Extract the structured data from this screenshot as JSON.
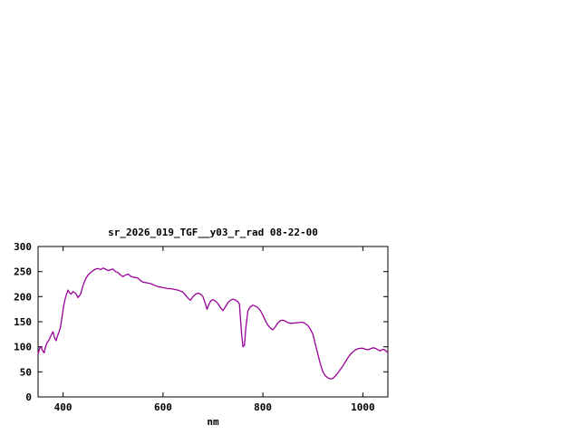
{
  "window": {
    "background": "#ffffff",
    "text_color": "#000000"
  },
  "chart_data": {
    "type": "line",
    "title": "sr_2026_019_TGF__y03_r_rad 08-22-00",
    "xlabel": "nm",
    "ylabel": "",
    "xlim": [
      350,
      1050
    ],
    "ylim": [
      0,
      300
    ],
    "xticks": [
      400,
      600,
      800,
      1000
    ],
    "yticks": [
      0,
      50,
      100,
      150,
      200,
      250,
      300
    ],
    "grid": false,
    "legend_position": "none",
    "line_color": "#990099",
    "series_name": "spectral-radiance",
    "x": [
      350,
      353,
      356,
      359,
      362,
      365,
      368,
      371,
      374,
      377,
      380,
      383,
      386,
      389,
      392,
      395,
      398,
      401,
      404,
      407,
      410,
      413,
      416,
      420,
      425,
      430,
      435,
      440,
      445,
      450,
      455,
      460,
      465,
      470,
      475,
      480,
      485,
      490,
      495,
      500,
      505,
      510,
      515,
      520,
      525,
      530,
      535,
      540,
      545,
      550,
      555,
      560,
      565,
      570,
      575,
      580,
      585,
      590,
      595,
      600,
      605,
      610,
      615,
      620,
      625,
      630,
      635,
      640,
      645,
      650,
      655,
      660,
      665,
      670,
      675,
      680,
      685,
      688,
      692,
      696,
      700,
      705,
      710,
      715,
      720,
      725,
      730,
      735,
      740,
      745,
      750,
      753,
      757,
      760,
      763,
      766,
      770,
      775,
      780,
      785,
      790,
      795,
      800,
      805,
      810,
      815,
      820,
      825,
      830,
      835,
      840,
      845,
      850,
      855,
      860,
      865,
      870,
      875,
      880,
      885,
      890,
      895,
      900,
      905,
      910,
      915,
      920,
      925,
      930,
      935,
      940,
      945,
      950,
      955,
      960,
      965,
      970,
      975,
      980,
      985,
      990,
      995,
      1000,
      1005,
      1010,
      1015,
      1020,
      1025,
      1030,
      1035,
      1040,
      1045,
      1050
    ],
    "y": [
      85,
      97,
      100,
      92,
      88,
      100,
      108,
      112,
      118,
      125,
      130,
      118,
      112,
      122,
      130,
      140,
      160,
      180,
      195,
      205,
      213,
      208,
      205,
      210,
      207,
      198,
      205,
      222,
      235,
      243,
      248,
      252,
      255,
      256,
      254,
      257,
      255,
      252,
      254,
      255,
      250,
      248,
      243,
      240,
      243,
      245,
      241,
      239,
      238,
      237,
      232,
      229,
      228,
      227,
      226,
      224,
      222,
      220,
      219,
      218,
      217,
      216,
      216,
      215,
      214,
      213,
      211,
      209,
      203,
      197,
      193,
      200,
      205,
      207,
      205,
      200,
      185,
      175,
      185,
      192,
      194,
      191,
      186,
      178,
      172,
      180,
      188,
      193,
      195,
      193,
      190,
      185,
      130,
      100,
      103,
      140,
      172,
      180,
      183,
      181,
      178,
      172,
      163,
      152,
      143,
      137,
      134,
      140,
      148,
      152,
      153,
      151,
      148,
      147,
      147,
      148,
      148,
      149,
      149,
      146,
      142,
      135,
      125,
      105,
      85,
      65,
      50,
      42,
      38,
      36,
      37,
      42,
      48,
      55,
      62,
      70,
      78,
      85,
      90,
      94,
      96,
      97,
      97,
      95,
      94,
      96,
      98,
      97,
      94,
      92,
      95,
      93,
      88
    ]
  }
}
